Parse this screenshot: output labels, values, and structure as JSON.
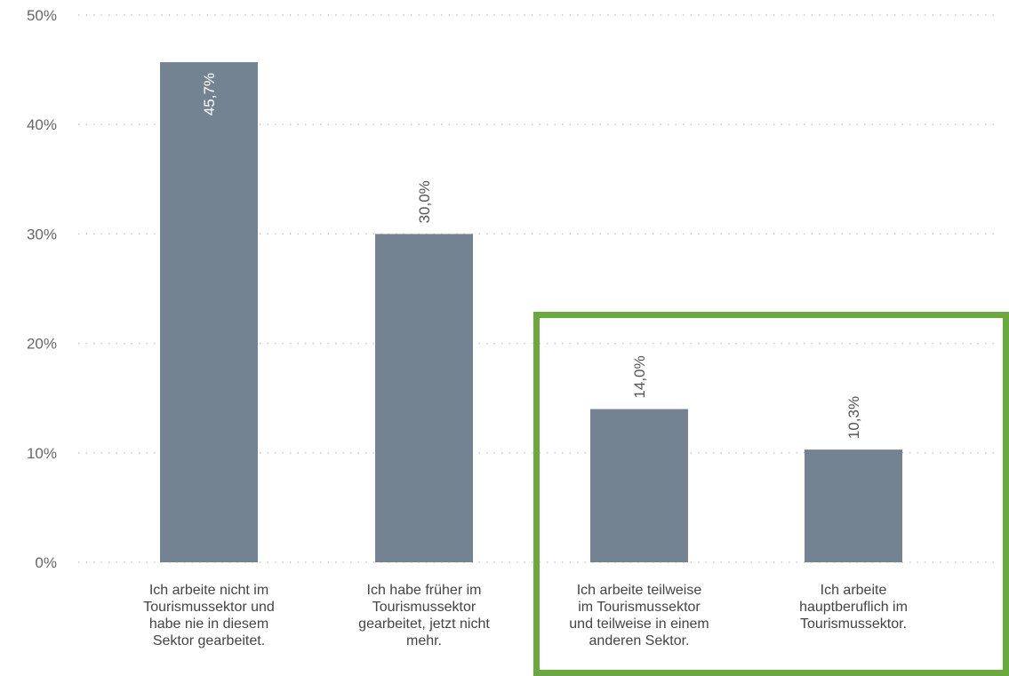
{
  "chart_data": {
    "type": "bar",
    "categories": [
      "Ich arbeite nicht im Tourismussektor und habe nie in diesem Sektor gearbeitet.",
      "Ich habe früher im Tourismussektor gearbeitet, jetzt nicht mehr.",
      "Ich arbeite teilweise im Tourismussektor und teilweise in einem anderen Sektor.",
      "Ich arbeite hauptberuflich im Tourismussektor."
    ],
    "values": [
      45.7,
      30.0,
      14.0,
      10.3
    ],
    "data_labels": [
      "45,7%",
      "30,0%",
      "14,0%",
      "10,3%"
    ],
    "yticks": [
      "0%",
      "10%",
      "20%",
      "30%",
      "40%",
      "50%"
    ],
    "ylim": [
      0,
      50
    ],
    "grid": true,
    "highlight_categories": [
      2,
      3
    ],
    "colors": {
      "bar": "#748391",
      "highlight": "#6aa93e",
      "grid": "#c8c8c8"
    }
  }
}
